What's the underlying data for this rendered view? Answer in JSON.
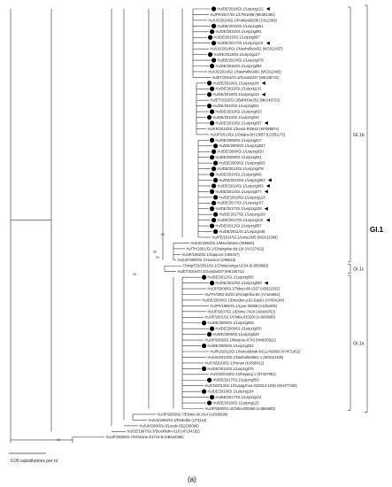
{
  "tree": {
    "leaves": [
      {
        "label": "Hu/DE/2018/GI.1/Leipzig122",
        "dot": true,
        "arrow": true
      },
      {
        "label": "Hu/FR/2017/GI.1/17W1098 (MK391481)",
        "dot": false,
        "arrow": false
      },
      {
        "label": "Hu/US/2014/GI.1/Portland3639 (G012369)",
        "dot": false,
        "arrow": false
      },
      {
        "label": "Hu/DE/2015/GI.1/Leipzig061",
        "dot": true,
        "arrow": false
      },
      {
        "label": "Hu/DE/2015/GI.1/Leipzig091",
        "dot": true,
        "arrow": false
      },
      {
        "label": "Hu/DE/2015/GI.1/Leipzig087",
        "dot": true,
        "arrow": false
      },
      {
        "label": "Hu/DE/2017/GI.1/Leipzig119",
        "dot": true,
        "arrow": true
      },
      {
        "label": "Hu/US/2014/GI.1/Nashville9432 (MG012437)",
        "dot": false,
        "arrow": false
      },
      {
        "label": "Hu/DE/2018/GI.1/Leipzig127",
        "dot": true,
        "arrow": false
      },
      {
        "label": "Hu/DE/2014/GI.1/Leipzig078",
        "dot": true,
        "arrow": false
      },
      {
        "label": "Hu/DE/2015/GI.1/Leipzig082",
        "dot": true,
        "arrow": false
      },
      {
        "label": "Hu/US/2014/GI.1/Nashville9491 (MG012400)",
        "dot": false,
        "arrow": false
      },
      {
        "label": "Hu/ET/2016/GI.1/Gondar327 (MK248741)",
        "dot": false,
        "arrow": false
      },
      {
        "label": "Hu/DE/2018/GI.1/Leipzig106",
        "dot": true,
        "arrow": true
      },
      {
        "label": "Hu/DE/2018/GI.1/Leipzig131",
        "dot": true,
        "arrow": false
      },
      {
        "label": "Hu/DE/2018/GI.1/Leipzig133",
        "dot": true,
        "arrow": true
      },
      {
        "label": "Hu/ET/2016/GI.1/BahirDar252 (MK248723)",
        "dot": false,
        "arrow": false
      },
      {
        "label": "Hu/DE/2010/GI.1/Leipzig031",
        "dot": true,
        "arrow": false
      },
      {
        "label": "Hu/DE/2010/GI.1/Leipzig033",
        "dot": true,
        "arrow": false
      },
      {
        "label": "Hu/DE/2010/GI.1/Leipzig034",
        "dot": true,
        "arrow": false
      },
      {
        "label": "Hu/DE/2010/GI.1/Leipzig037",
        "dot": true,
        "arrow": true
      },
      {
        "label": "Hu/KR/2013/GI.1/Seoul-ROK52 (KP398874)",
        "dot": false,
        "arrow": false
      },
      {
        "label": "Hu/JP/2013/GI.1/Osaka-OH13057 (LC081173)",
        "dot": false,
        "arrow": false
      },
      {
        "label": "Hu/DE/2009/GI.1/Leipzig017",
        "dot": true,
        "arrow": false
      },
      {
        "label": "Hu/DE/2009/GI.1/Leipzig027",
        "dot": true,
        "arrow": false
      },
      {
        "label": "Hu/DE/2009/GI.1/Leipzig020",
        "dot": true,
        "arrow": false
      },
      {
        "label": "Hu/DE/2009/GI.1/Leipzig021",
        "dot": true,
        "arrow": false
      },
      {
        "label": "Hu/DE/2009/GI.1/Leipzig026",
        "dot": true,
        "arrow": false
      },
      {
        "label": "Hu/DE/2014/GI.1/Leipzig079",
        "dot": true,
        "arrow": false
      },
      {
        "label": "Hu/DE/2014/GI.1/Leipzig066",
        "dot": true,
        "arrow": false
      },
      {
        "label": "Hu/DE/2013/GI.1/Leipzig063",
        "dot": true,
        "arrow": true
      },
      {
        "label": "Hu/DE/2014/GI.1/Leipzig065",
        "dot": true,
        "arrow": true
      },
      {
        "label": "Hu/DE/2014/GI.1/Leipzig077",
        "dot": true,
        "arrow": true
      },
      {
        "label": "Hu/DE/2018/GI.1/Leipzig128",
        "dot": true,
        "arrow": false
      },
      {
        "label": "Hu/DE/2017/GI.1/Leipzig107",
        "dot": true,
        "arrow": false
      },
      {
        "label": "Hu/DE/2017/GI.1/Leipzig108",
        "dot": true,
        "arrow": true
      },
      {
        "label": "Hu/DE/2017/GI.1/Leipzig109",
        "dot": true,
        "arrow": false
      },
      {
        "label": "Hu/DE/2017/GI.1/Leipzig110",
        "dot": true,
        "arrow": true
      },
      {
        "label": "Hu/DE/2012/GI.1/Leipzig057",
        "dot": true,
        "arrow": false
      },
      {
        "label": "Hu/DE/2011/GI.1/Leipzig048",
        "dot": true,
        "arrow": false
      },
      {
        "label": "Hu/PE/2014/GI.1/Lima1845 (MG012398)",
        "dot": false,
        "arrow": false
      },
      {
        "label": "Hu/UK/1993/GI.1/Manchester (X86560)",
        "dot": false,
        "arrow": false
      },
      {
        "label": "Hu/TH/2001/GI.1/ChiangMai-Mc114 (AY237422)",
        "dot": false,
        "arrow": false
      },
      {
        "label": "Hu/JP/1982/GI.1/Sapporo (U65427)",
        "dot": false,
        "arrow": false
      },
      {
        "label": "Hu/US/1990/GI.1/Houston (U95643)",
        "dot": false,
        "arrow": false
      },
      {
        "label": "Chimp/CD/2001/GI.1/Chimpounga-UC04 (KJ858698)",
        "dot": false,
        "arrow": false
      },
      {
        "label": "Hu/ET/2016/GI.1/Gondar037 (MK246711)",
        "dot": false,
        "arrow": false
      },
      {
        "label": "Hu/DE/2012/GI.1/Leipzig055",
        "dot": true,
        "arrow": false
      },
      {
        "label": "Hu/DE/2012/GI.1/Leipzig059",
        "dot": true,
        "arrow": true
      },
      {
        "label": "Hu/JP/2008/GI.1/Tokyo-08-1337 (AB522332)",
        "dot": false,
        "arrow": false
      },
      {
        "label": "Hu/TH/2002-03/GI.1/HongKhai-50 (AY164663)",
        "dot": false,
        "arrow": false
      },
      {
        "label": "Hu/DE/2004/GI.1/Dresden-pJG-Sap01 (AY694184)",
        "dot": false,
        "arrow": false
      },
      {
        "label": "Hu/FR/1999/GI.1/Lyon-30388 (AJ251991)",
        "dot": false,
        "arrow": false
      },
      {
        "label": "Hu/JP/2007/GI.1/Ehime-7420 (AB448762)",
        "dot": false,
        "arrow": false
      },
      {
        "label": "Hu/JP/2001/GI.1/Chiba-010250 (AJ606695)",
        "dot": false,
        "arrow": false
      },
      {
        "label": "Hu/DE/2009/GI.1/Leipzig025",
        "dot": true,
        "arrow": false
      },
      {
        "label": "Hu/DE/2009/GI.1/Leipzig030",
        "dot": true,
        "arrow": false
      },
      {
        "label": "Hu/DE/2009/GI.1/Leipzig028",
        "dot": true,
        "arrow": false
      },
      {
        "label": "Hu/JP/2006/GI.1/Maizuru-6743 (HM030922)",
        "dot": false,
        "arrow": false
      },
      {
        "label": "Hu/DE/2009/GI.1/Leipzig022",
        "dot": true,
        "arrow": false
      },
      {
        "label": "Hu/RU/2012/GI.1/Novosibirsk-NS12-N3890 (KY471452)",
        "dot": false,
        "arrow": false
      },
      {
        "label": "Hu/US/2013/GI.1/Nashville9661-1 (MG012435)",
        "dot": false,
        "arrow": false
      },
      {
        "label": "Hu/CN/2016/GI.1/Hunan (KJ680412)",
        "dot": false,
        "arrow": false
      },
      {
        "label": "Hu/DE/2014/GI.1/Leipzig075",
        "dot": true,
        "arrow": false
      },
      {
        "label": "Hu/CN/2016/GI.1/Zhejiang 1 (KT327081)",
        "dot": false,
        "arrow": false
      },
      {
        "label": "Hu/DE/2017/GI.1/Leipzig093",
        "dot": true,
        "arrow": false
      },
      {
        "label": "Hu/CN/2013/GI.1/Guangzhou-GZ2013-L030 (MH477428)",
        "dot": false,
        "arrow": false
      },
      {
        "label": "Hu/DE/2018/GI.1/Leipzig104",
        "dot": true,
        "arrow": false
      },
      {
        "label": "Hu/DE/2017/GI.1/Leipzig112",
        "dot": true,
        "arrow": false
      },
      {
        "label": "Hu/DE/2018/GI.1/Leipzig125",
        "dot": true,
        "arrow": false
      },
      {
        "label": "Hu/JP/2000/GI.4/Chiba-000496 (AJ866693)",
        "dot": false,
        "arrow": false
      },
      {
        "label": "Hu/JP/2000/GI.7/Ehime-2K-814 (AJ606696)",
        "dot": false,
        "arrow": false
      },
      {
        "label": "Hu/US/1994/GI.2/Parkville (U73124)",
        "dot": false,
        "arrow": false
      },
      {
        "label": "Hu/UK/2000/GI.8/Leeds (DQ158096)",
        "dot": false,
        "arrow": false
      },
      {
        "label": "Hu/SE/1997/GI.3/Stockholm-318 (AF104182)",
        "dot": false,
        "arrow": false
      },
      {
        "label": "Hu/JP/2006/GI.7/Shimane-D1714-B (AB522390)",
        "dot": false,
        "arrow": false
      }
    ],
    "supports": [
      {
        "value": "99",
        "after_leaf": 44
      },
      {
        "value": "84",
        "after_leaf": 40
      },
      {
        "value": "99",
        "after_leaf": 47
      },
      {
        "value": "86",
        "after_leaf": 43
      },
      {
        "value": "99",
        "after_leaf": 76
      }
    ],
    "groups": [
      {
        "label": "GI.1b",
        "from": 0,
        "to": 44
      },
      {
        "label": "GI.1c",
        "from": 45,
        "to": 46
      },
      {
        "label": "GI.1a",
        "from": 47,
        "to": 70
      }
    ],
    "genotype_label": "GI.1",
    "scale_label": "0.05 substitutions per nt",
    "panel_caption": "(a)"
  }
}
